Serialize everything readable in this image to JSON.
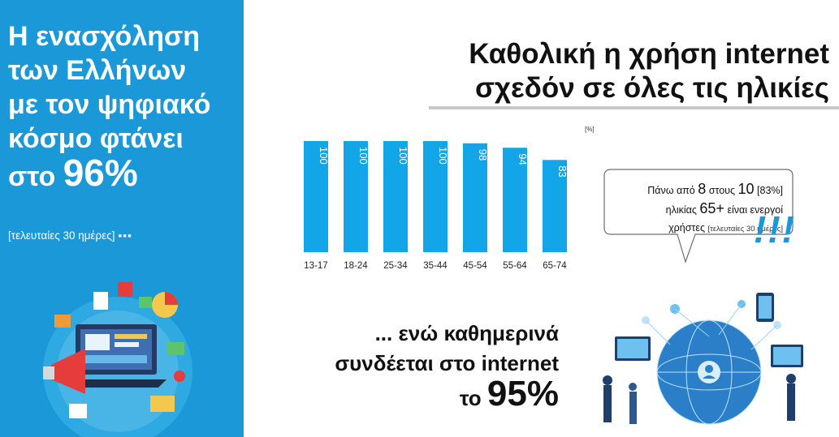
{
  "left_panel": {
    "headline_lines": [
      "Η ενασχόληση",
      "των Ελλήνων",
      "με τον ψηφιακό",
      "κόσμο φτάνει"
    ],
    "headline_prefix": "στο",
    "headline_value": "96%",
    "subtext": "[τελευταίες 30 ημέρες]",
    "dots": "▪▪▪"
  },
  "title_lines": [
    "Καθολική η χρήση internet",
    "σχεδόν σε όλες τις ηλικίες"
  ],
  "colors": {
    "accent": "#1a98d8",
    "bar": "#12a6e8",
    "rule": "#c8c8c8"
  },
  "chart_data": {
    "type": "bar",
    "unit_label": "[%]",
    "categories": [
      "13-17",
      "18-24",
      "25-34",
      "35-44",
      "45-54",
      "55-64",
      "65-74"
    ],
    "values": [
      100,
      100,
      100,
      100,
      98,
      94,
      83
    ],
    "ylim": [
      0,
      100
    ],
    "data_labels": "inside-top-rotated",
    "grid": false
  },
  "callout": {
    "line1_prefix": "Πάνω από",
    "line1_num_a": "8",
    "line1_mid": "στους",
    "line1_num_b": "10",
    "line1_pct": "[83%]",
    "line2_prefix": "ηλικίας",
    "line2_num": "65+",
    "line2_suffix": "είναι ενεργοί",
    "line3_main": "χρήστες",
    "line3_note": "[τελευταίες 30 ημέρες]",
    "exclaim": "!!!"
  },
  "daily": {
    "line1": "... ενώ καθημερινά",
    "line2": "συνδέεται στο internet",
    "prefix": "το",
    "value": "95%"
  }
}
